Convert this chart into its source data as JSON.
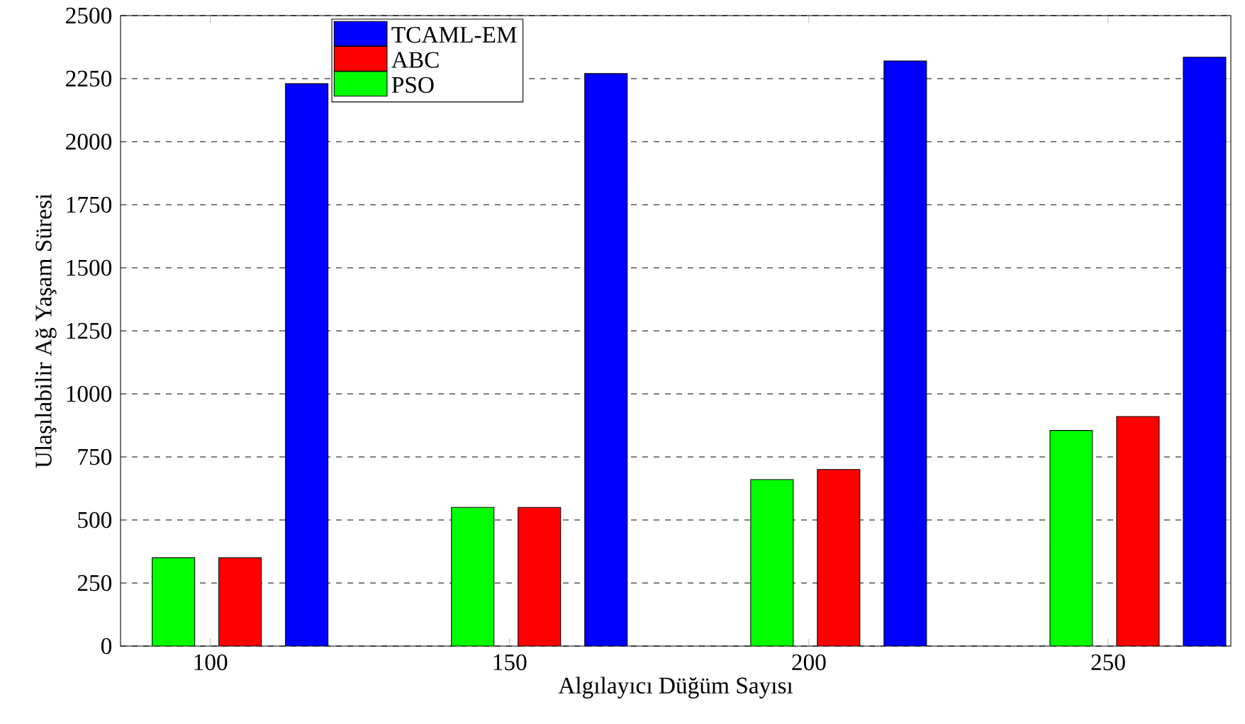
{
  "chart_data": {
    "type": "bar",
    "xlabel": "Algılayıcı Düğüm Sayısı",
    "ylabel": "Ulaşılabilir Ağ Yaşam Süresi",
    "categories": [
      "100",
      "150",
      "200",
      "250"
    ],
    "series": [
      {
        "name": "PSO",
        "color": "#00ff00",
        "values": [
          350,
          550,
          660,
          855
        ]
      },
      {
        "name": "ABC",
        "color": "#ff0000",
        "values": [
          350,
          550,
          700,
          910
        ]
      },
      {
        "name": "TCAML-EM",
        "color": "#0000ff",
        "values": [
          2230,
          2270,
          2320,
          2335
        ]
      }
    ],
    "ylim": [
      0,
      2500
    ],
    "yticks": [
      0,
      250,
      500,
      750,
      1000,
      1250,
      1500,
      1750,
      2000,
      2250,
      2500
    ],
    "grid": "y",
    "legend": "top left"
  }
}
